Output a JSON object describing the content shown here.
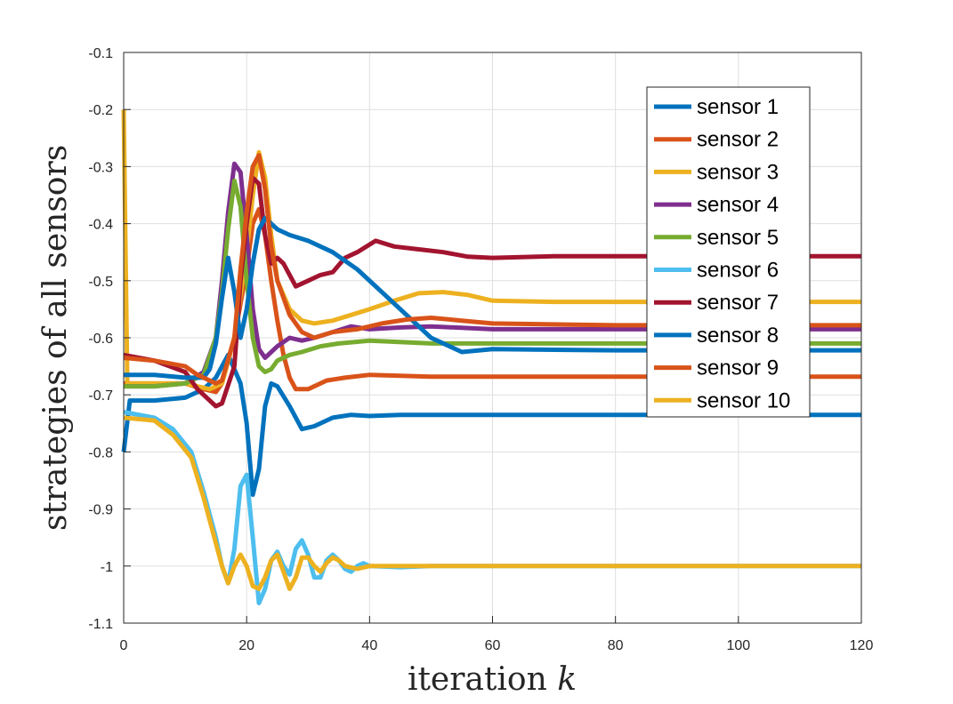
{
  "chart_data": {
    "type": "line",
    "title": "",
    "xlabel": "iteration",
    "xlabel_var": "k",
    "ylabel": "strategies of all sensors",
    "xlim": [
      0,
      120
    ],
    "ylim": [
      -1.1,
      -0.1
    ],
    "xticks": [
      0,
      20,
      40,
      60,
      80,
      100,
      120
    ],
    "yticks": [
      -0.1,
      -0.2,
      -0.3,
      -0.4,
      -0.5,
      -0.6,
      -0.7,
      -0.8,
      -0.9,
      -1,
      -1.1
    ],
    "grid": true,
    "legend_position": "top-right",
    "series": [
      {
        "name": "sensor 1",
        "color": "#0072BD",
        "points": [
          [
            0,
            -0.8
          ],
          [
            1,
            -0.71
          ],
          [
            5,
            -0.71
          ],
          [
            10,
            -0.705
          ],
          [
            13,
            -0.69
          ],
          [
            15,
            -0.67
          ],
          [
            17,
            -0.63
          ],
          [
            19,
            -0.68
          ],
          [
            20,
            -0.75
          ],
          [
            21,
            -0.875
          ],
          [
            22,
            -0.83
          ],
          [
            23,
            -0.72
          ],
          [
            24,
            -0.68
          ],
          [
            25,
            -0.685
          ],
          [
            27,
            -0.72
          ],
          [
            29,
            -0.76
          ],
          [
            31,
            -0.755
          ],
          [
            34,
            -0.74
          ],
          [
            37,
            -0.735
          ],
          [
            40,
            -0.737
          ],
          [
            45,
            -0.735
          ],
          [
            50,
            -0.735
          ],
          [
            60,
            -0.735
          ],
          [
            80,
            -0.735
          ],
          [
            120,
            -0.735
          ]
        ]
      },
      {
        "name": "sensor 2",
        "color": "#D95319",
        "points": [
          [
            0,
            -0.68
          ],
          [
            5,
            -0.68
          ],
          [
            10,
            -0.68
          ],
          [
            13,
            -0.69
          ],
          [
            15,
            -0.695
          ],
          [
            16,
            -0.68
          ],
          [
            18,
            -0.6
          ],
          [
            20,
            -0.48
          ],
          [
            21,
            -0.4
          ],
          [
            22,
            -0.375
          ],
          [
            23,
            -0.42
          ],
          [
            24,
            -0.5
          ],
          [
            25,
            -0.57
          ],
          [
            26,
            -0.63
          ],
          [
            27,
            -0.67
          ],
          [
            28,
            -0.69
          ],
          [
            30,
            -0.69
          ],
          [
            33,
            -0.675
          ],
          [
            36,
            -0.67
          ],
          [
            40,
            -0.665
          ],
          [
            50,
            -0.668
          ],
          [
            60,
            -0.668
          ],
          [
            80,
            -0.668
          ],
          [
            120,
            -0.668
          ]
        ]
      },
      {
        "name": "sensor 3",
        "color": "#EDB120",
        "points": [
          [
            0,
            -0.2
          ],
          [
            0.6,
            -0.68
          ],
          [
            5,
            -0.68
          ],
          [
            10,
            -0.68
          ],
          [
            14,
            -0.69
          ],
          [
            16,
            -0.68
          ],
          [
            18,
            -0.6
          ],
          [
            20,
            -0.45
          ],
          [
            21,
            -0.35
          ],
          [
            22,
            -0.275
          ],
          [
            23,
            -0.32
          ],
          [
            24,
            -0.42
          ],
          [
            25,
            -0.5
          ],
          [
            27,
            -0.55
          ],
          [
            29,
            -0.57
          ],
          [
            31,
            -0.575
          ],
          [
            34,
            -0.57
          ],
          [
            37,
            -0.56
          ],
          [
            40,
            -0.55
          ],
          [
            44,
            -0.535
          ],
          [
            48,
            -0.522
          ],
          [
            52,
            -0.52
          ],
          [
            56,
            -0.525
          ],
          [
            60,
            -0.535
          ],
          [
            70,
            -0.537
          ],
          [
            90,
            -0.537
          ],
          [
            120,
            -0.537
          ]
        ]
      },
      {
        "name": "sensor 4",
        "color": "#7E2F8E",
        "points": [
          [
            0,
            -0.685
          ],
          [
            5,
            -0.685
          ],
          [
            10,
            -0.68
          ],
          [
            13,
            -0.66
          ],
          [
            15,
            -0.6
          ],
          [
            16,
            -0.5
          ],
          [
            17,
            -0.38
          ],
          [
            18,
            -0.295
          ],
          [
            19,
            -0.31
          ],
          [
            20,
            -0.42
          ],
          [
            21,
            -0.55
          ],
          [
            22,
            -0.62
          ],
          [
            23,
            -0.635
          ],
          [
            25,
            -0.615
          ],
          [
            27,
            -0.6
          ],
          [
            29,
            -0.605
          ],
          [
            31,
            -0.6
          ],
          [
            34,
            -0.59
          ],
          [
            37,
            -0.58
          ],
          [
            40,
            -0.585
          ],
          [
            45,
            -0.582
          ],
          [
            50,
            -0.58
          ],
          [
            60,
            -0.585
          ],
          [
            80,
            -0.585
          ],
          [
            120,
            -0.585
          ]
        ]
      },
      {
        "name": "sensor 5",
        "color": "#77AC30",
        "points": [
          [
            0,
            -0.685
          ],
          [
            5,
            -0.685
          ],
          [
            10,
            -0.68
          ],
          [
            13,
            -0.665
          ],
          [
            15,
            -0.6
          ],
          [
            16,
            -0.52
          ],
          [
            17,
            -0.41
          ],
          [
            18,
            -0.325
          ],
          [
            19,
            -0.37
          ],
          [
            20,
            -0.5
          ],
          [
            21,
            -0.6
          ],
          [
            22,
            -0.65
          ],
          [
            23,
            -0.66
          ],
          [
            24,
            -0.655
          ],
          [
            25,
            -0.64
          ],
          [
            27,
            -0.63
          ],
          [
            29,
            -0.625
          ],
          [
            32,
            -0.615
          ],
          [
            35,
            -0.61
          ],
          [
            40,
            -0.605
          ],
          [
            50,
            -0.61
          ],
          [
            60,
            -0.61
          ],
          [
            80,
            -0.61
          ],
          [
            120,
            -0.61
          ]
        ]
      },
      {
        "name": "sensor 6",
        "color": "#4DBEEE",
        "points": [
          [
            0,
            -0.73
          ],
          [
            5,
            -0.74
          ],
          [
            8,
            -0.76
          ],
          [
            11,
            -0.8
          ],
          [
            13,
            -0.87
          ],
          [
            15,
            -0.95
          ],
          [
            16,
            -1.0
          ],
          [
            17,
            -1.03
          ],
          [
            18,
            -0.97
          ],
          [
            19,
            -0.86
          ],
          [
            20,
            -0.84
          ],
          [
            21,
            -0.95
          ],
          [
            22,
            -1.065
          ],
          [
            23,
            -1.04
          ],
          [
            24,
            -0.99
          ],
          [
            25,
            -0.975
          ],
          [
            26,
            -1.0
          ],
          [
            27,
            -1.015
          ],
          [
            28,
            -0.97
          ],
          [
            29,
            -0.955
          ],
          [
            30,
            -0.98
          ],
          [
            31,
            -1.02
          ],
          [
            32,
            -1.02
          ],
          [
            33,
            -0.99
          ],
          [
            34,
            -0.98
          ],
          [
            35,
            -0.99
          ],
          [
            36,
            -1.005
          ],
          [
            37,
            -1.01
          ],
          [
            38,
            -1.0
          ],
          [
            39,
            -0.995
          ],
          [
            40,
            -1.0
          ],
          [
            45,
            -1.002
          ],
          [
            50,
            -1.0
          ],
          [
            60,
            -1.0
          ],
          [
            80,
            -1.0
          ],
          [
            120,
            -1.0
          ]
        ]
      },
      {
        "name": "sensor 7",
        "color": "#A2142F",
        "points": [
          [
            0,
            -0.63
          ],
          [
            5,
            -0.64
          ],
          [
            10,
            -0.66
          ],
          [
            12,
            -0.69
          ],
          [
            15,
            -0.72
          ],
          [
            16,
            -0.715
          ],
          [
            18,
            -0.65
          ],
          [
            19,
            -0.5
          ],
          [
            20,
            -0.4
          ],
          [
            21,
            -0.32
          ],
          [
            22,
            -0.33
          ],
          [
            23,
            -0.42
          ],
          [
            24,
            -0.47
          ],
          [
            25,
            -0.46
          ],
          [
            26,
            -0.47
          ],
          [
            28,
            -0.51
          ],
          [
            30,
            -0.5
          ],
          [
            32,
            -0.49
          ],
          [
            34,
            -0.485
          ],
          [
            36,
            -0.46
          ],
          [
            38,
            -0.45
          ],
          [
            41,
            -0.43
          ],
          [
            44,
            -0.44
          ],
          [
            48,
            -0.445
          ],
          [
            52,
            -0.45
          ],
          [
            56,
            -0.458
          ],
          [
            60,
            -0.46
          ],
          [
            70,
            -0.457
          ],
          [
            90,
            -0.457
          ],
          [
            120,
            -0.457
          ]
        ]
      },
      {
        "name": "sensor 8",
        "color": "#0072BD",
        "points": [
          [
            0,
            -0.665
          ],
          [
            5,
            -0.665
          ],
          [
            10,
            -0.67
          ],
          [
            13,
            -0.67
          ],
          [
            14,
            -0.655
          ],
          [
            15,
            -0.61
          ],
          [
            16,
            -0.53
          ],
          [
            17,
            -0.46
          ],
          [
            18,
            -0.52
          ],
          [
            19,
            -0.6
          ],
          [
            20,
            -0.55
          ],
          [
            21,
            -0.47
          ],
          [
            22,
            -0.41
          ],
          [
            23,
            -0.39
          ],
          [
            25,
            -0.41
          ],
          [
            27,
            -0.42
          ],
          [
            30,
            -0.43
          ],
          [
            34,
            -0.45
          ],
          [
            38,
            -0.48
          ],
          [
            42,
            -0.52
          ],
          [
            46,
            -0.56
          ],
          [
            50,
            -0.6
          ],
          [
            55,
            -0.625
          ],
          [
            60,
            -0.62
          ],
          [
            80,
            -0.622
          ],
          [
            120,
            -0.622
          ]
        ]
      },
      {
        "name": "sensor 9",
        "color": "#D95319",
        "points": [
          [
            0,
            -0.635
          ],
          [
            5,
            -0.64
          ],
          [
            10,
            -0.65
          ],
          [
            12,
            -0.665
          ],
          [
            15,
            -0.68
          ],
          [
            16,
            -0.675
          ],
          [
            18,
            -0.6
          ],
          [
            19,
            -0.48
          ],
          [
            20,
            -0.38
          ],
          [
            21,
            -0.3
          ],
          [
            22,
            -0.28
          ],
          [
            23,
            -0.34
          ],
          [
            24,
            -0.44
          ],
          [
            25,
            -0.5
          ],
          [
            27,
            -0.56
          ],
          [
            29,
            -0.59
          ],
          [
            31,
            -0.6
          ],
          [
            34,
            -0.59
          ],
          [
            38,
            -0.585
          ],
          [
            42,
            -0.575
          ],
          [
            46,
            -0.568
          ],
          [
            50,
            -0.565
          ],
          [
            55,
            -0.57
          ],
          [
            60,
            -0.575
          ],
          [
            80,
            -0.578
          ],
          [
            120,
            -0.578
          ]
        ]
      },
      {
        "name": "sensor 10",
        "color": "#EDB120",
        "points": [
          [
            0,
            -0.74
          ],
          [
            5,
            -0.745
          ],
          [
            8,
            -0.77
          ],
          [
            11,
            -0.81
          ],
          [
            13,
            -0.88
          ],
          [
            15,
            -0.96
          ],
          [
            16,
            -1.0
          ],
          [
            17,
            -1.03
          ],
          [
            18,
            -1.0
          ],
          [
            19,
            -0.98
          ],
          [
            20,
            -1.0
          ],
          [
            21,
            -1.035
          ],
          [
            22,
            -1.04
          ],
          [
            23,
            -1.02
          ],
          [
            24,
            -0.99
          ],
          [
            25,
            -0.98
          ],
          [
            26,
            -1.01
          ],
          [
            27,
            -1.04
          ],
          [
            28,
            -1.02
          ],
          [
            29,
            -0.985
          ],
          [
            30,
            -0.985
          ],
          [
            31,
            -1.0
          ],
          [
            32,
            -1.01
          ],
          [
            33,
            -0.995
          ],
          [
            34,
            -0.985
          ],
          [
            35,
            -0.99
          ],
          [
            36,
            -1.0
          ],
          [
            38,
            -1.005
          ],
          [
            40,
            -1.0
          ],
          [
            45,
            -1.0
          ],
          [
            60,
            -1.0
          ],
          [
            80,
            -1.0
          ],
          [
            120,
            -1.0
          ]
        ]
      }
    ]
  }
}
